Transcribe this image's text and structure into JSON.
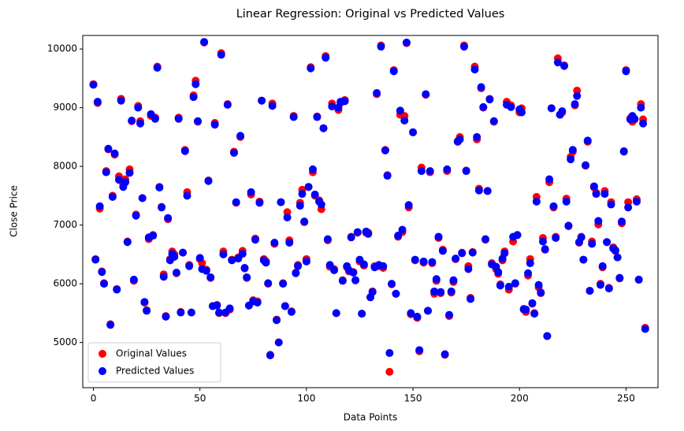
{
  "chart_data": {
    "type": "scatter",
    "title": "Linear Regression: Original vs Predicted Values",
    "x_label": "Data Points",
    "y_label": "Close Price",
    "xlim": [
      -5,
      265
    ],
    "ylim": [
      4230,
      10230
    ],
    "xticks": [
      0,
      50,
      100,
      150,
      200,
      250
    ],
    "yticks": [
      5000,
      6000,
      7000,
      8000,
      9000,
      10000
    ],
    "grid": false,
    "legend": "lower left",
    "x": [
      0,
      1,
      2,
      3,
      4,
      5,
      6,
      7,
      8,
      9,
      10,
      11,
      12,
      13,
      14,
      15,
      16,
      17,
      18,
      19,
      20,
      21,
      22,
      23,
      24,
      25,
      26,
      27,
      28,
      29,
      30,
      31,
      32,
      33,
      34,
      35,
      36,
      37,
      38,
      39,
      40,
      41,
      42,
      43,
      44,
      45,
      46,
      47,
      48,
      49,
      50,
      51,
      52,
      53,
      54,
      55,
      56,
      57,
      58,
      59,
      60,
      61,
      62,
      63,
      64,
      65,
      66,
      67,
      68,
      69,
      70,
      71,
      72,
      73,
      74,
      75,
      76,
      77,
      78,
      79,
      80,
      81,
      82,
      83,
      84,
      85,
      86,
      87,
      88,
      89,
      90,
      91,
      92,
      93,
      94,
      95,
      96,
      97,
      98,
      99,
      100,
      101,
      102,
      103,
      104,
      105,
      106,
      107,
      108,
      109,
      110,
      111,
      112,
      113,
      114,
      115,
      116,
      117,
      118,
      119,
      120,
      121,
      122,
      123,
      124,
      125,
      126,
      127,
      128,
      129,
      130,
      131,
      132,
      133,
      134,
      135,
      136,
      137,
      138,
      139,
      140,
      141,
      142,
      143,
      144,
      145,
      146,
      147,
      148,
      149,
      150,
      151,
      152,
      153,
      154,
      155,
      156,
      157,
      158,
      159,
      160,
      161,
      162,
      163,
      164,
      165,
      166,
      167,
      168,
      169,
      170,
      171,
      172,
      173,
      174,
      175,
      176,
      177,
      178,
      179,
      180,
      181,
      182,
      183,
      184,
      185,
      186,
      187,
      188,
      189,
      190,
      191,
      192,
      193,
      194,
      195,
      196,
      197,
      198,
      199,
      200,
      201,
      202,
      203,
      204,
      205,
      206,
      207,
      208,
      209,
      210,
      211,
      212,
      213,
      214,
      215,
      216,
      217,
      218,
      219,
      220,
      221,
      222,
      223,
      224,
      225,
      226,
      227,
      228,
      229,
      230,
      231,
      232,
      233,
      234,
      235,
      236,
      237,
      238,
      239,
      240,
      241,
      242,
      243,
      244,
      245,
      246,
      247,
      248,
      249,
      250,
      251,
      252,
      253,
      254,
      255,
      256,
      257,
      258,
      259
    ],
    "series": [
      {
        "name": "Original Values",
        "color": "#ff0000",
        "values": [
          9400,
          6420,
          9080,
          7280,
          6210,
          6010,
          7920,
          8290,
          5310,
          7500,
          8200,
          5910,
          7830,
          9150,
          7680,
          7780,
          6720,
          7950,
          8770,
          6050,
          7180,
          9030,
          8770,
          7460,
          5680,
          5550,
          6760,
          8860,
          6830,
          8830,
          9700,
          7650,
          7310,
          6160,
          5450,
          7100,
          6420,
          6550,
          6500,
          6180,
          8830,
          5520,
          6530,
          8280,
          7560,
          6320,
          5510,
          9210,
          9460,
          8760,
          6420,
          6350,
          10110,
          6240,
          7760,
          6100,
          5620,
          8740,
          5640,
          5500,
          9930,
          6550,
          5500,
          9060,
          5560,
          6410,
          8250,
          7380,
          6450,
          8500,
          6560,
          6260,
          6100,
          5630,
          7520,
          5720,
          6770,
          5700,
          7400,
          9120,
          6420,
          6380,
          6000,
          4790,
          9070,
          6680,
          5390,
          5000,
          7390,
          6010,
          5620,
          7220,
          6740,
          5530,
          8860,
          6190,
          6320,
          7380,
          7600,
          7050,
          6420,
          7650,
          9690,
          7900,
          7500,
          8850,
          7420,
          7270,
          8650,
          9880,
          6740,
          6290,
          9070,
          6250,
          5500,
          8960,
          9080,
          6060,
          9130,
          6280,
          6210,
          6800,
          6200,
          6060,
          6870,
          6380,
          5490,
          6310,
          6870,
          6870,
          5770,
          5870,
          6300,
          9230,
          6300,
          10060,
          6270,
          8280,
          7850,
          4500,
          5990,
          9640,
          5830,
          6800,
          8880,
          6880,
          8860,
          10100,
          7300,
          5480,
          8580,
          6400,
          5420,
          4850,
          7980,
          6360,
          9220,
          5540,
          7900,
          6350,
          5830,
          6050,
          6780,
          5840,
          6580,
          4790,
          7920,
          5450,
          5850,
          6030,
          6420,
          8430,
          8500,
          6530,
          10060,
          7930,
          6300,
          5760,
          6540,
          9700,
          8460,
          7620,
          9330,
          9000,
          6750,
          7580,
          9150,
          6350,
          8760,
          6250,
          6170,
          5990,
          6400,
          6550,
          9100,
          5900,
          9040,
          6720,
          6000,
          6830,
          8920,
          8990,
          5560,
          5520,
          6140,
          6420,
          5660,
          5500,
          7480,
          5940,
          5840,
          6780,
          6580,
          5110,
          7730,
          8990,
          7300,
          6800,
          9840,
          8880,
          8920,
          9720,
          7450,
          6980,
          8160,
          8250,
          9040,
          9290,
          6700,
          6800,
          6410,
          8010,
          8420,
          5880,
          6720,
          7640,
          7550,
          7010,
          6000,
          6280,
          7580,
          6710,
          5930,
          7390,
          6620,
          6560,
          6450,
          6090,
          7030,
          8260,
          9640,
          7390,
          8820,
          8760,
          8800,
          7440,
          6070,
          9060,
          8800,
          5250
        ]
      },
      {
        "name": "Predicted Values",
        "color": "#0000ff",
        "values": [
          9390,
          6410,
          9100,
          7320,
          6200,
          6000,
          7900,
          8300,
          5300,
          7480,
          8220,
          5900,
          7770,
          9120,
          7650,
          7730,
          6710,
          7890,
          8780,
          6070,
          7160,
          9000,
          8730,
          7460,
          5690,
          5540,
          6790,
          8890,
          6820,
          8810,
          9680,
          7640,
          7300,
          6120,
          5440,
          7120,
          6400,
          6510,
          6460,
          6190,
          8810,
          5510,
          6530,
          8260,
          7500,
          6300,
          5510,
          9180,
          9400,
          8770,
          6440,
          6250,
          10120,
          6220,
          7750,
          6110,
          5620,
          8710,
          5630,
          5510,
          9900,
          6500,
          5510,
          9050,
          5580,
          6400,
          8230,
          7390,
          6430,
          8520,
          6510,
          6270,
          6110,
          5630,
          7560,
          5700,
          6750,
          5680,
          7380,
          9120,
          6400,
          6360,
          6010,
          4780,
          9030,
          6700,
          5380,
          5000,
          7390,
          6000,
          5620,
          7130,
          6700,
          5520,
          8840,
          6180,
          6300,
          7330,
          7530,
          7060,
          6380,
          7650,
          9670,
          7950,
          7520,
          8840,
          7400,
          7350,
          8650,
          9850,
          6760,
          6320,
          9020,
          6230,
          5500,
          9000,
          9100,
          6050,
          9110,
          6300,
          6230,
          6790,
          6190,
          6060,
          6880,
          6410,
          5490,
          6330,
          6890,
          6850,
          5770,
          5860,
          6280,
          9250,
          6320,
          10040,
          6300,
          8270,
          7840,
          4820,
          6000,
          9620,
          5830,
          6820,
          8950,
          6920,
          8780,
          10110,
          7340,
          5500,
          8580,
          6410,
          5440,
          4870,
          7920,
          6380,
          9230,
          5540,
          7920,
          6370,
          5870,
          6080,
          6800,
          5860,
          6560,
          4800,
          7950,
          5470,
          5870,
          6060,
          6430,
          8420,
          8460,
          6520,
          10040,
          7920,
          6250,
          5740,
          6530,
          9650,
          8500,
          7590,
          9350,
          9010,
          6760,
          7580,
          9140,
          6330,
          8770,
          6290,
          6200,
          5970,
          6430,
          6520,
          9050,
          5950,
          9010,
          6800,
          6010,
          6830,
          8970,
          8920,
          5570,
          5560,
          6180,
          6350,
          5670,
          5490,
          7400,
          5980,
          5850,
          6720,
          6590,
          5110,
          7780,
          8990,
          7320,
          6780,
          9770,
          8880,
          8940,
          9710,
          7400,
          6990,
          8120,
          8280,
          9060,
          9200,
          6710,
          6790,
          6410,
          8020,
          8440,
          5880,
          6680,
          7660,
          7530,
          7070,
          5980,
          6300,
          7530,
          6710,
          5920,
          7350,
          6600,
          6570,
          6450,
          6100,
          7060,
          8250,
          9620,
          7300,
          8800,
          8860,
          8810,
          7400,
          6070,
          9000,
          8730,
          5230
        ]
      }
    ]
  }
}
